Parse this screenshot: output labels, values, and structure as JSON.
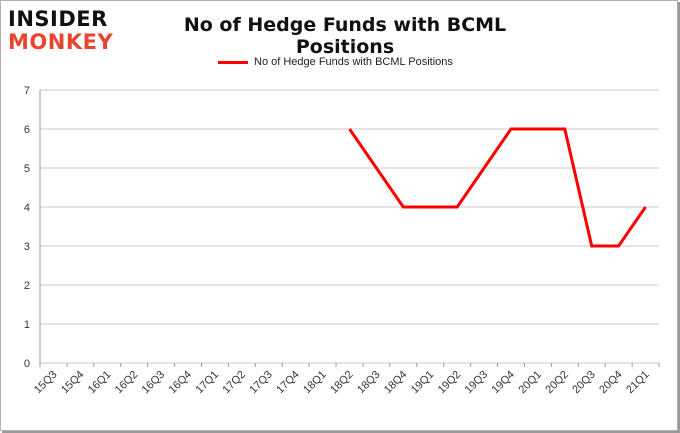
{
  "logo": {
    "line1": "INSIDER",
    "line2": "MONKEY"
  },
  "colors": {
    "series": "#ff0000",
    "grid": "#c8c8c8",
    "logo_accent": "#e8442e"
  },
  "chart_data": {
    "type": "line",
    "title": "No of Hedge Funds with BCML Positions",
    "xlabel": "",
    "ylabel": "",
    "ylim": [
      0,
      7
    ],
    "yticks": [
      0,
      1,
      2,
      3,
      4,
      5,
      6,
      7
    ],
    "grid": true,
    "legend_position": "top-center",
    "categories": [
      "15Q3",
      "15Q4",
      "16Q1",
      "16Q2",
      "16Q3",
      "16Q4",
      "17Q1",
      "17Q2",
      "17Q3",
      "17Q4",
      "18Q1",
      "18Q2",
      "18Q3",
      "18Q4",
      "19Q1",
      "19Q2",
      "19Q3",
      "19Q4",
      "20Q1",
      "20Q2",
      "20Q3",
      "20Q4",
      "21Q1"
    ],
    "series": [
      {
        "name": "No of Hedge Funds with BCML Positions",
        "values": [
          null,
          null,
          null,
          null,
          null,
          null,
          null,
          null,
          null,
          null,
          null,
          6,
          5,
          4,
          4,
          4,
          5,
          6,
          6,
          6,
          3,
          3,
          4
        ]
      }
    ]
  }
}
